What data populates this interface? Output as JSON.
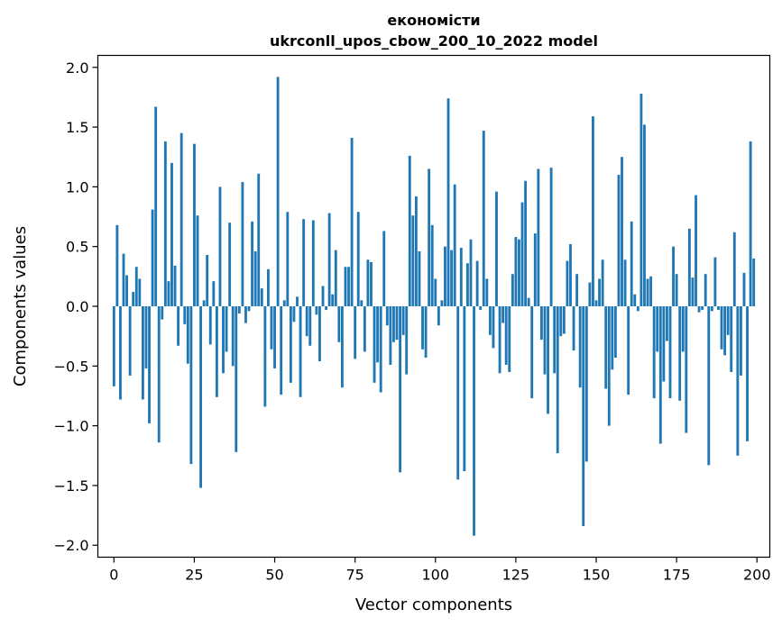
{
  "chart_data": {
    "type": "bar",
    "title": "економісти",
    "subtitle": "ukrconll_upos_cbow_200_10_2022 model",
    "xlabel": "Vector components",
    "ylabel": "Components values",
    "xlim": [
      -5,
      204
    ],
    "ylim": [
      -2.1,
      2.1
    ],
    "xticks": [
      0,
      25,
      50,
      75,
      100,
      125,
      150,
      175,
      200
    ],
    "yticks": [
      -2.0,
      -1.5,
      -1.0,
      -0.5,
      0.0,
      0.5,
      1.0,
      1.5,
      2.0
    ],
    "ytick_labels": [
      "−2.0",
      "−1.5",
      "−1.0",
      "−0.5",
      "0.0",
      "0.5",
      "1.0",
      "1.5",
      "2.0"
    ],
    "bar_color": "#1f77b4",
    "grid": false,
    "values": [
      -0.67,
      0.68,
      -0.78,
      0.44,
      0.26,
      -0.58,
      0.12,
      0.33,
      0.23,
      -0.78,
      -0.52,
      -0.98,
      0.81,
      1.67,
      -1.14,
      -0.11,
      1.38,
      0.21,
      1.2,
      0.34,
      -0.33,
      1.45,
      -0.15,
      -0.48,
      -1.32,
      1.36,
      0.76,
      -1.52,
      0.05,
      0.43,
      -0.32,
      0.21,
      -0.76,
      1.0,
      -0.56,
      -0.38,
      0.7,
      -0.5,
      -1.22,
      -0.06,
      1.04,
      -0.14,
      -0.04,
      0.71,
      0.46,
      1.11,
      0.15,
      -0.84,
      0.31,
      -0.36,
      -0.52,
      1.92,
      -0.74,
      0.05,
      0.79,
      -0.64,
      -0.13,
      0.08,
      -0.76,
      0.73,
      -0.25,
      -0.33,
      0.72,
      -0.07,
      -0.46,
      0.17,
      -0.03,
      0.78,
      0.1,
      0.47,
      -0.3,
      -0.68,
      0.33,
      0.33,
      1.41,
      -0.44,
      0.79,
      0.05,
      -0.38,
      0.39,
      0.37,
      -0.64,
      -0.47,
      -0.72,
      0.63,
      -0.16,
      -0.49,
      -0.3,
      -0.28,
      -1.39,
      -0.24,
      -0.57,
      1.26,
      0.76,
      0.92,
      0.46,
      -0.36,
      -0.43,
      1.15,
      0.68,
      0.23,
      -0.16,
      0.05,
      0.5,
      1.74,
      0.47,
      1.02,
      -1.45,
      0.49,
      -1.38,
      0.36,
      0.56,
      -1.92,
      0.38,
      -0.03,
      1.47,
      0.23,
      -0.24,
      -0.35,
      0.96,
      -0.56,
      -0.14,
      -0.49,
      -0.55,
      0.27,
      0.58,
      0.56,
      0.87,
      1.05,
      0.07,
      -0.77,
      0.61,
      1.15,
      -0.28,
      -0.57,
      -0.9,
      1.16,
      -0.56,
      -1.23,
      -0.25,
      -0.23,
      0.38,
      0.52,
      -0.37,
      0.27,
      -0.68,
      -1.84,
      -1.3,
      0.2,
      1.59,
      0.05,
      0.23,
      0.39,
      -0.69,
      -1.0,
      -0.53,
      -0.43,
      1.1,
      1.25,
      0.39,
      -0.74,
      0.71,
      0.1,
      -0.04,
      1.78,
      1.52,
      0.23,
      0.25,
      -0.77,
      -0.38,
      -1.15,
      -0.63,
      -0.29,
      -0.77,
      0.5,
      0.27,
      -0.79,
      -0.38,
      -1.06,
      0.65,
      0.24,
      0.93,
      -0.05,
      -0.03,
      0.27,
      -1.33,
      -0.04,
      0.41,
      -0.03,
      -0.36,
      -0.41,
      -0.24,
      -0.55,
      0.62,
      -1.25,
      -0.58,
      0.28,
      -1.13,
      1.38,
      0.4
    ]
  }
}
